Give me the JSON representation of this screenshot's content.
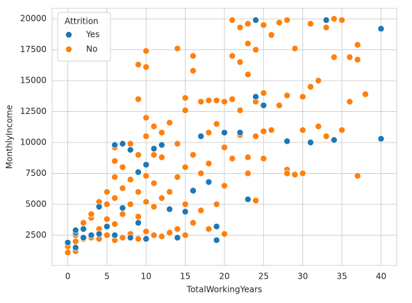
{
  "chart_data": {
    "type": "scatter",
    "x_label": "TotalWorkingYears",
    "y_label": "MonthlyIncome",
    "legend_title": "Attrition",
    "legend": "upper left",
    "grid": true,
    "xlim": [
      -2,
      42
    ],
    "ylim": [
      50,
      20850
    ],
    "xticks": [
      0,
      5,
      10,
      15,
      20,
      25,
      30,
      35,
      40
    ],
    "yticks": [
      2500,
      5000,
      7500,
      10000,
      12500,
      15000,
      17500,
      20000
    ],
    "series": [
      {
        "name": "Yes",
        "color": "#1f77b4",
        "x": [
          0,
          1,
          1,
          1,
          2,
          2,
          3,
          4,
          4,
          5,
          6,
          6,
          7,
          7,
          8,
          8,
          9,
          9,
          10,
          10,
          11,
          12,
          13,
          14,
          15,
          16,
          17,
          18,
          19,
          19,
          20,
          22,
          23,
          24,
          24,
          25,
          28,
          31,
          33,
          34,
          40,
          40
        ],
        "values": [
          1900,
          1500,
          2700,
          2900,
          2300,
          3000,
          2500,
          4800,
          2600,
          3200,
          9800,
          2500,
          9900,
          4700,
          9400,
          2300,
          7600,
          3500,
          8200,
          2200,
          9500,
          9800,
          4600,
          2300,
          4400,
          6100,
          10500,
          6800,
          2100,
          3200,
          10800,
          10800,
          5400,
          19900,
          13700,
          13000,
          10100,
          10000,
          19900,
          10200,
          19200,
          10300
        ]
      },
      {
        "name": "No",
        "color": "#ff7f0e",
        "x": [
          0,
          0,
          1,
          1,
          1,
          2,
          2,
          3,
          3,
          3,
          4,
          4,
          4,
          5,
          5,
          5,
          5,
          6,
          6,
          6,
          6,
          6,
          6,
          7,
          7,
          7,
          7,
          7,
          8,
          8,
          8,
          8,
          9,
          9,
          9,
          9,
          9,
          9,
          10,
          10,
          10,
          10,
          10,
          10,
          10,
          11,
          11,
          11,
          11,
          11,
          12,
          12,
          12,
          12,
          13,
          13,
          13,
          14,
          14,
          14,
          14,
          15,
          15,
          15,
          15,
          15,
          16,
          16,
          16,
          16,
          17,
          17,
          17,
          18,
          18,
          18,
          18,
          19,
          19,
          19,
          20,
          20,
          20,
          20,
          21,
          21,
          21,
          21,
          22,
          22,
          22,
          22,
          23,
          23,
          23,
          23,
          23,
          24,
          24,
          24,
          24,
          25,
          25,
          25,
          25,
          26,
          26,
          27,
          27,
          28,
          28,
          28,
          28,
          29,
          29,
          30,
          30,
          30,
          31,
          31,
          32,
          32,
          33,
          33,
          34,
          34,
          35,
          35,
          36,
          36,
          37,
          37,
          37,
          38
        ],
        "values": [
          1100,
          1600,
          1200,
          2000,
          2500,
          2200,
          3500,
          2300,
          3900,
          4200,
          2200,
          3000,
          5200,
          2500,
          3800,
          5000,
          6000,
          2100,
          3400,
          5500,
          7200,
          8500,
          9600,
          2300,
          4200,
          6300,
          8000,
          9900,
          2600,
          5000,
          7000,
          9900,
          2200,
          4000,
          6000,
          9000,
          13500,
          16300,
          2800,
          5200,
          7300,
          10500,
          12000,
          16100,
          17400,
          2500,
          4800,
          6700,
          9000,
          11300,
          2400,
          5500,
          8800,
          10800,
          2700,
          6000,
          11600,
          3000,
          7200,
          9900,
          17600,
          2500,
          5000,
          8000,
          12600,
          13600,
          3500,
          9000,
          15800,
          17000,
          4500,
          7500,
          13300,
          3000,
          8300,
          10800,
          13400,
          5000,
          11500,
          13400,
          2600,
          6500,
          9600,
          13300,
          8700,
          13500,
          19900,
          17000,
          10600,
          12600,
          19300,
          16500,
          7500,
          8800,
          15500,
          18000,
          19600,
          5300,
          10500,
          13300,
          17500,
          8700,
          10900,
          19500,
          14000,
          11000,
          18700,
          13000,
          19700,
          7800,
          7500,
          13800,
          19900,
          7400,
          17600,
          7500,
          11000,
          13700,
          19600,
          14500,
          11300,
          15000,
          10500,
          19300,
          16900,
          20000,
          11000,
          19900,
          13300,
          16900,
          7300,
          17900,
          16700,
          13900
        ]
      }
    ]
  }
}
